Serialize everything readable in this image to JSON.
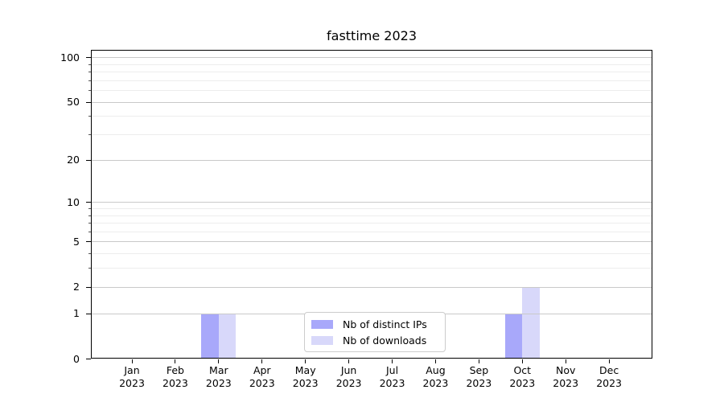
{
  "chart_data": {
    "type": "bar",
    "title": "fasttime 2023",
    "xlabel": "",
    "ylabel": "",
    "yscale": "log1p",
    "ylim": [
      0,
      112
    ],
    "y_major_ticks": [
      0,
      1,
      2,
      5,
      10,
      20,
      50,
      100
    ],
    "y_minor_ticks": [
      3,
      4,
      6,
      7,
      8,
      9,
      30,
      40,
      60,
      70,
      80,
      90
    ],
    "grid": "horizontal major and minor gridlines",
    "legend_position": "lower center",
    "categories": [
      {
        "month": "Jan",
        "year": "2023"
      },
      {
        "month": "Feb",
        "year": "2023"
      },
      {
        "month": "Mar",
        "year": "2023"
      },
      {
        "month": "Apr",
        "year": "2023"
      },
      {
        "month": "May",
        "year": "2023"
      },
      {
        "month": "Jun",
        "year": "2023"
      },
      {
        "month": "Jul",
        "year": "2023"
      },
      {
        "month": "Aug",
        "year": "2023"
      },
      {
        "month": "Sep",
        "year": "2023"
      },
      {
        "month": "Oct",
        "year": "2023"
      },
      {
        "month": "Nov",
        "year": "2023"
      },
      {
        "month": "Dec",
        "year": "2023"
      }
    ],
    "series": [
      {
        "name": "Nb of distinct IPs",
        "color": "#a8a8fa",
        "values": [
          0,
          0,
          1,
          0,
          0,
          0,
          0,
          0,
          0,
          1,
          0,
          0
        ]
      },
      {
        "name": "Nb of downloads",
        "color": "#d8d8fa",
        "values": [
          0,
          0,
          1,
          0,
          0,
          0,
          0,
          0,
          0,
          2,
          0,
          0
        ]
      }
    ]
  },
  "colors": {
    "background": "#ffffff",
    "grid_major": "#c9c9c9",
    "grid_minor": "#ededed",
    "axis": "#000000",
    "legend_border": "#cccccc"
  }
}
